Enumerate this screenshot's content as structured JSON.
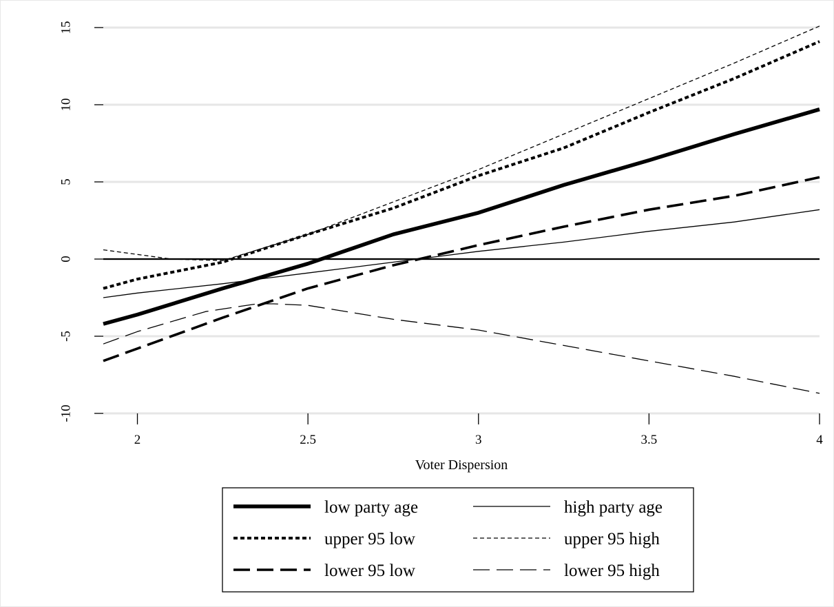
{
  "chart_data": {
    "type": "line",
    "title": "",
    "xlabel": "Voter Dispersion",
    "ylabel": "",
    "xlim": [
      1.9,
      4.0
    ],
    "ylim": [
      -10,
      15
    ],
    "x_ticks": [
      2,
      2.5,
      3,
      3.5,
      4
    ],
    "x_tick_labels": [
      "2",
      "2.5",
      "3",
      "3.5",
      "4"
    ],
    "y_ticks": [
      -10,
      -5,
      0,
      5,
      10,
      15
    ],
    "y_tick_labels": [
      "-10",
      "-5",
      "0",
      "5",
      "10",
      "15"
    ],
    "grid": "horizontal",
    "reference_line_y": 0,
    "legend_position": "bottom",
    "series": [
      {
        "name": "low party age",
        "style": "solid-thick",
        "x": [
          1.9,
          2.0,
          2.25,
          2.5,
          2.75,
          3.0,
          3.25,
          3.5,
          3.75,
          4.0
        ],
        "y": [
          -4.2,
          -3.6,
          -1.9,
          -0.3,
          1.6,
          3.0,
          4.8,
          6.4,
          8.1,
          9.7
        ]
      },
      {
        "name": "high party age",
        "style": "solid-thin",
        "x": [
          1.9,
          2.0,
          2.25,
          2.5,
          2.75,
          3.0,
          3.25,
          3.5,
          3.75,
          4.0
        ],
        "y": [
          -2.5,
          -2.2,
          -1.6,
          -0.9,
          -0.2,
          0.5,
          1.1,
          1.8,
          2.4,
          3.2
        ]
      },
      {
        "name": "upper 95 low",
        "style": "dotted-thick",
        "x": [
          1.9,
          2.0,
          2.25,
          2.5,
          2.75,
          3.0,
          3.25,
          3.5,
          3.75,
          4.0
        ],
        "y": [
          -1.9,
          -1.3,
          -0.2,
          1.6,
          3.3,
          5.4,
          7.2,
          9.5,
          11.7,
          14.1
        ]
      },
      {
        "name": "upper 95 high",
        "style": "dashed-thin",
        "x": [
          1.9,
          2.0,
          2.1,
          2.25,
          2.5,
          2.75,
          3.0,
          3.25,
          3.5,
          3.75,
          4.0
        ],
        "y": [
          0.6,
          0.3,
          0.0,
          -0.1,
          1.6,
          3.7,
          5.8,
          8.1,
          10.4,
          12.7,
          15.1
        ]
      },
      {
        "name": "lower 95 low",
        "style": "longdash-thick",
        "x": [
          1.9,
          2.0,
          2.25,
          2.5,
          2.75,
          3.0,
          3.25,
          3.5,
          3.75,
          4.0
        ],
        "y": [
          -6.6,
          -5.8,
          -3.8,
          -1.9,
          -0.4,
          0.9,
          2.1,
          3.2,
          4.1,
          5.3
        ]
      },
      {
        "name": "lower 95 high",
        "style": "longdash-thin",
        "x": [
          1.9,
          2.0,
          2.2,
          2.35,
          2.4,
          2.5,
          2.75,
          3.0,
          3.25,
          3.5,
          3.75,
          4.0
        ],
        "y": [
          -5.5,
          -4.7,
          -3.4,
          -2.9,
          -2.9,
          -3.0,
          -3.9,
          -4.6,
          -5.6,
          -6.6,
          -7.6,
          -8.7
        ]
      }
    ]
  }
}
